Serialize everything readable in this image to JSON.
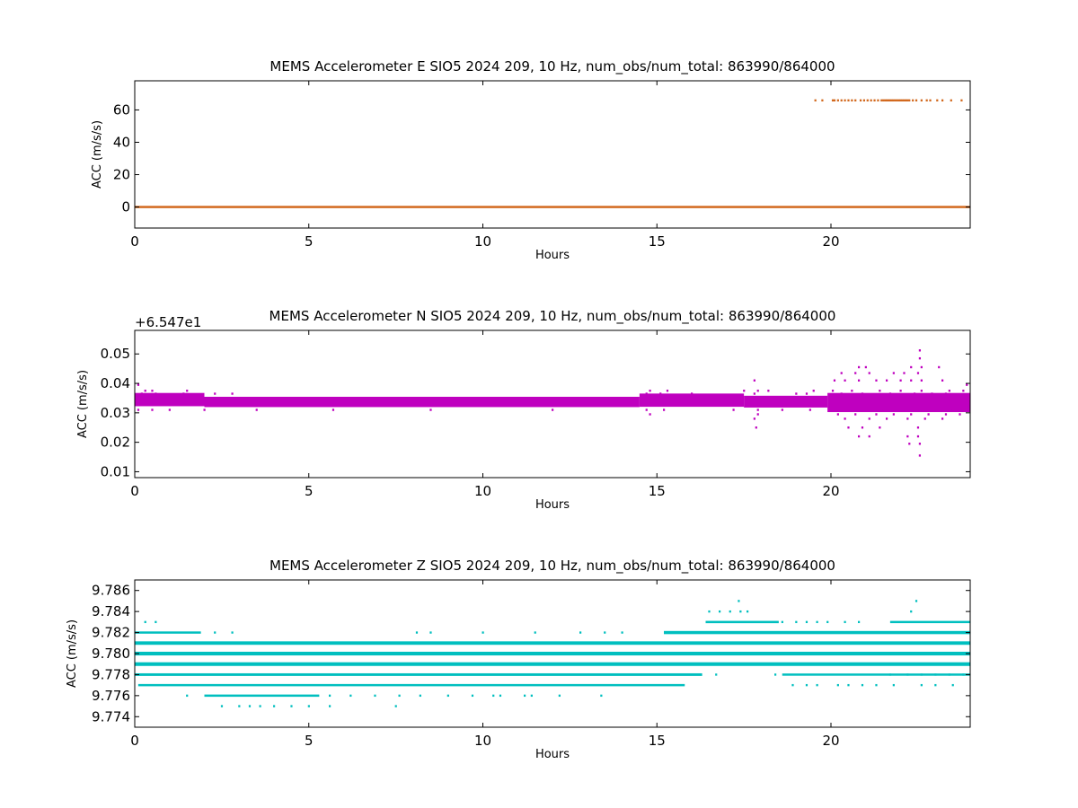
{
  "chart_data": [
    {
      "type": "scatter",
      "title": "MEMS Accelerometer E SIO5 2024 209, 10 Hz, num_obs/num_total: 863990/864000",
      "xlabel": "Hours",
      "ylabel": "ACC (m/s/s)",
      "offset_text": "",
      "xlim": [
        0,
        24
      ],
      "ylim": [
        -13,
        78
      ],
      "xticks": [
        0,
        5,
        10,
        15,
        20
      ],
      "yticks": [
        0,
        20,
        40,
        60
      ],
      "ytick_labels": [
        "0",
        "20",
        "40",
        "60"
      ],
      "color": "#d2691e",
      "series": [
        {
          "bands": [
            {
              "y": 0,
              "x": [
                0,
                24
              ],
              "thickness": 1.0
            }
          ],
          "sparse": [
            {
              "y": 65.9,
              "x": [
                19.55,
                19.75,
                20.05,
                20.1,
                20.2,
                20.3,
                20.4,
                20.5,
                20.6,
                20.7,
                20.85,
                20.95,
                21.05,
                21.15,
                21.25,
                21.35,
                21.45,
                21.5,
                21.55,
                21.6,
                21.65,
                21.7,
                21.75,
                21.8,
                21.85,
                21.9,
                21.95,
                22.0,
                22.05,
                22.1,
                22.15,
                22.2,
                22.25,
                22.35,
                22.45,
                22.6,
                22.75,
                22.85,
                23.05,
                23.2,
                23.45,
                23.75
              ]
            }
          ]
        }
      ],
      "grid": false
    },
    {
      "type": "scatter",
      "title": "MEMS Accelerometer N SIO5 2024 209, 10 Hz, num_obs/num_total: 863990/864000",
      "xlabel": "Hours",
      "ylabel": "ACC (m/s/s)",
      "offset_text": "+6.547e1",
      "xlim": [
        0,
        24
      ],
      "ylim": [
        0.008,
        0.058
      ],
      "xticks": [
        0,
        5,
        10,
        15,
        20
      ],
      "yticks": [
        0.01,
        0.02,
        0.03,
        0.04,
        0.05
      ],
      "ytick_labels": [
        "0.01",
        "0.02",
        "0.03",
        "0.04",
        "0.05"
      ],
      "color": "#bf00bf",
      "series": [
        {
          "bands": [
            {
              "y": 0.0345,
              "x": [
                0,
                2.0
              ],
              "thickness": 0.0045
            },
            {
              "y": 0.0337,
              "x": [
                2.0,
                14.5
              ],
              "thickness": 0.0035
            },
            {
              "y": 0.0343,
              "x": [
                14.5,
                17.5
              ],
              "thickness": 0.0045
            },
            {
              "y": 0.0338,
              "x": [
                17.5,
                19.9
              ],
              "thickness": 0.004
            },
            {
              "y": 0.0335,
              "x": [
                19.9,
                24
              ],
              "thickness": 0.0065
            }
          ],
          "sparse": [
            {
              "y": 0.0395,
              "x": [
                0.1,
                23.9
              ]
            },
            {
              "y": 0.0375,
              "x": [
                0.3,
                0.5,
                1.5,
                14.8,
                15.3,
                17.5,
                17.9,
                18.2,
                19.5,
                20.05,
                20.6,
                21.4,
                22.0,
                22.6,
                23.4,
                23.8
              ]
            },
            {
              "y": 0.0365,
              "x": [
                0.2,
                0.6,
                1.4,
                2.3,
                2.8,
                14.7,
                15.1,
                16.0,
                17.8,
                19.0,
                19.3,
                20.3,
                20.9,
                21.7,
                22.4,
                22.9,
                23.3
              ]
            },
            {
              "y": 0.031,
              "x": [
                0.1,
                0.5,
                1.0,
                2.0,
                3.5,
                5.7,
                8.5,
                12.0,
                14.7,
                15.2,
                17.2,
                17.9,
                18.6,
                19.4,
                20.1,
                20.5,
                21.0,
                21.5,
                22.1,
                22.6,
                23.0,
                23.5
              ]
            },
            {
              "y": 0.0295,
              "x": [
                14.8,
                17.9,
                20.2,
                20.7,
                21.3,
                21.8,
                22.3,
                22.8,
                23.3,
                23.7
              ]
            },
            {
              "y": 0.028,
              "x": [
                17.8,
                20.4,
                21.1,
                21.6,
                22.2,
                22.7,
                23.2
              ]
            },
            {
              "y": 0.025,
              "x": [
                17.85,
                20.5,
                20.9,
                21.4,
                22.5
              ]
            },
            {
              "y": 0.022,
              "x": [
                20.8,
                21.1,
                22.2,
                22.5
              ]
            },
            {
              "y": 0.0195,
              "x": [
                22.25,
                22.55
              ]
            },
            {
              "y": 0.0155,
              "x": [
                22.55
              ]
            },
            {
              "y": 0.041,
              "x": [
                17.8,
                20.1,
                20.4,
                20.8,
                21.3,
                21.6,
                22.0,
                22.3,
                22.6,
                23.2
              ]
            },
            {
              "y": 0.0435,
              "x": [
                20.3,
                20.7,
                21.1,
                21.8,
                22.1,
                22.5
              ]
            },
            {
              "y": 0.0455,
              "x": [
                20.8,
                21.0,
                22.3,
                22.6,
                23.1
              ]
            },
            {
              "y": 0.0485,
              "x": [
                22.55
              ]
            },
            {
              "y": 0.0512,
              "x": [
                22.55
              ]
            }
          ]
        }
      ],
      "grid": false
    },
    {
      "type": "scatter",
      "title": "MEMS Accelerometer Z SIO5 2024 209, 10 Hz, num_obs/num_total: 863990/864000",
      "xlabel": "Hours",
      "ylabel": "ACC (m/s/s)",
      "offset_text": "",
      "xlim": [
        0,
        24
      ],
      "ylim": [
        9.773,
        9.787
      ],
      "xticks": [
        0,
        5,
        10,
        15,
        20
      ],
      "yticks": [
        9.774,
        9.776,
        9.778,
        9.78,
        9.782,
        9.784,
        9.786
      ],
      "ytick_labels": [
        "9.774",
        "9.776",
        "9.778",
        "9.780",
        "9.782",
        "9.784",
        "9.786"
      ],
      "color": "#00bfbf",
      "series": [
        {
          "bands": [
            {
              "y": 9.779,
              "x": [
                0,
                24
              ],
              "thickness": 0.00035
            },
            {
              "y": 9.78,
              "x": [
                0,
                24
              ],
              "thickness": 0.00035
            },
            {
              "y": 9.781,
              "x": [
                0,
                24
              ],
              "thickness": 0.00033
            },
            {
              "y": 9.778,
              "x": [
                0,
                16.3
              ],
              "thickness": 0.00025
            },
            {
              "y": 9.778,
              "x": [
                18.6,
                24
              ],
              "thickness": 0.0002
            },
            {
              "y": 9.777,
              "x": [
                0.1,
                15.8
              ],
              "thickness": 0.00018
            },
            {
              "y": 9.782,
              "x": [
                0,
                1.9
              ],
              "thickness": 0.0002
            },
            {
              "y": 9.782,
              "x": [
                15.2,
                24
              ],
              "thickness": 0.0003
            },
            {
              "y": 9.783,
              "x": [
                16.4,
                18.5
              ],
              "thickness": 0.00022
            },
            {
              "y": 9.783,
              "x": [
                21.7,
                24
              ],
              "thickness": 0.0002
            },
            {
              "y": 9.776,
              "x": [
                2.0,
                5.3
              ],
              "thickness": 0.00015
            }
          ],
          "sparse": [
            {
              "y": 9.783,
              "x": [
                0.3,
                0.6,
                18.6,
                19.0,
                19.3,
                19.6,
                19.9,
                20.4,
                20.8
              ]
            },
            {
              "y": 9.784,
              "x": [
                16.5,
                16.8,
                17.1,
                17.4,
                17.6,
                22.3
              ]
            },
            {
              "y": 9.785,
              "x": [
                17.35,
                22.45
              ]
            },
            {
              "y": 9.782,
              "x": [
                2.3,
                2.8,
                8.1,
                8.5,
                10.0,
                11.5,
                12.8,
                13.5,
                14.0
              ]
            },
            {
              "y": 9.781,
              "x": [
                0.1
              ]
            },
            {
              "y": 9.776,
              "x": [
                1.5,
                5.6,
                6.2,
                6.9,
                7.6,
                8.2,
                9.0,
                9.7,
                10.3,
                10.5,
                11.2,
                11.4,
                12.2,
                13.4
              ]
            },
            {
              "y": 9.775,
              "x": [
                2.5,
                3.0,
                3.3,
                3.6,
                4.0,
                4.5,
                5.0,
                5.6,
                7.5
              ]
            },
            {
              "y": 9.777,
              "x": [
                18.9,
                19.3,
                19.6,
                20.2,
                20.5,
                20.9,
                21.3,
                21.8,
                22.6,
                23.0,
                23.5
              ]
            },
            {
              "y": 9.778,
              "x": [
                16.7,
                18.4,
                21.7,
                22.2,
                22.6,
                23.0,
                23.4,
                23.8
              ]
            }
          ]
        }
      ],
      "grid": false
    }
  ]
}
